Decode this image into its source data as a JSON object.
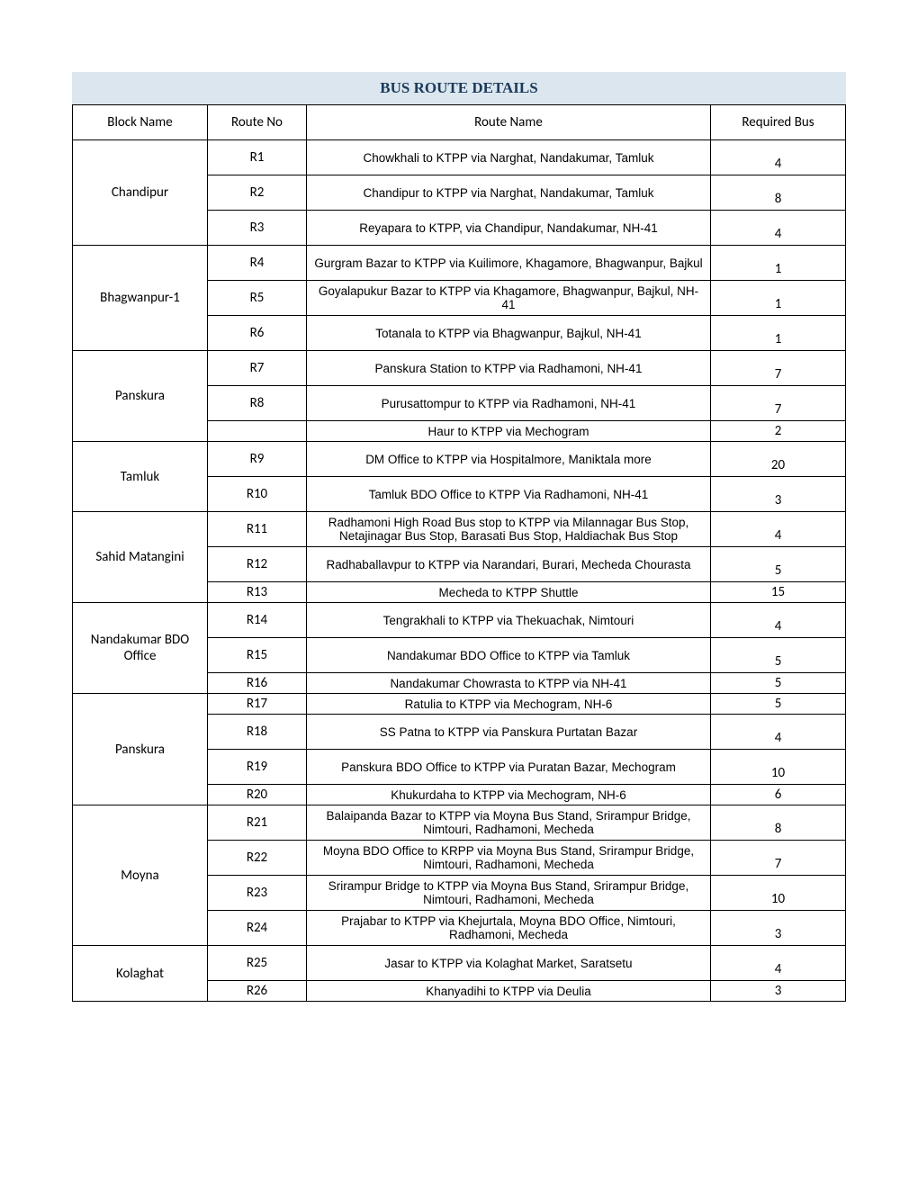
{
  "title": "BUS ROUTE DETAILS",
  "headers": {
    "block": "Block Name",
    "routeNo": "Route No",
    "routeName": "Route Name",
    "bus": "Required Bus"
  },
  "blocks": [
    {
      "name": "Chandipur",
      "rows": [
        {
          "no": "R1",
          "name": "Chowkhali to KTPP via Narghat, Nandakumar, Tamluk",
          "bus": "4"
        },
        {
          "no": "R2",
          "name": "Chandipur to KTPP via Narghat, Nandakumar, Tamluk",
          "bus": "8"
        },
        {
          "no": "R3",
          "name": "Reyapara to KTPP, via Chandipur, Nandakumar, NH-41",
          "bus": "4"
        }
      ]
    },
    {
      "name": "Bhagwanpur-1",
      "rows": [
        {
          "no": "R4",
          "name": "Gurgram Bazar to KTPP via Kuilimore, Khagamore, Bhagwanpur, Bajkul",
          "bus": "1"
        },
        {
          "no": "R5",
          "name": "Goyalapukur Bazar to KTPP via Khagamore, Bhagwanpur, Bajkul, NH-41",
          "bus": "1"
        },
        {
          "no": "R6",
          "name": "Totanala to KTPP via Bhagwanpur, Bajkul, NH-41",
          "bus": "1"
        }
      ]
    },
    {
      "name": "Panskura",
      "rows": [
        {
          "no": "R7",
          "name": "Panskura Station to KTPP via Radhamoni, NH-41",
          "bus": "7"
        },
        {
          "no": "R8",
          "name": "Purusattompur to KTPP via Radhamoni, NH-41",
          "bus": "7"
        },
        {
          "no": "",
          "name": "Haur to KTPP via Mechogram",
          "bus": "2",
          "tight": true
        }
      ]
    },
    {
      "name": "Tamluk",
      "rows": [
        {
          "no": "R9",
          "name": "DM Office to KTPP via Hospitalmore, Maniktala more",
          "bus": "20"
        },
        {
          "no": "R10",
          "name": "Tamluk BDO Office to KTPP Via Radhamoni, NH-41",
          "bus": "3"
        }
      ]
    },
    {
      "name": "Sahid Matangini",
      "rows": [
        {
          "no": "R11",
          "name": "Radhamoni High Road Bus stop to KTPP via Milannagar Bus Stop, Netajinagar Bus Stop, Barasati Bus Stop, Haldiachak Bus Stop",
          "bus": "4"
        },
        {
          "no": "R12",
          "name": "Radhaballavpur to KTPP via Narandari, Burari, Mecheda Chourasta",
          "bus": "5"
        },
        {
          "no": "R13",
          "name": "Mecheda to KTPP Shuttle",
          "bus": "15",
          "tight": true
        }
      ]
    },
    {
      "name": "Nandakumar BDO Office",
      "rows": [
        {
          "no": "R14",
          "name": "Tengrakhali to KTPP via Thekuachak, Nimtouri",
          "bus": "4"
        },
        {
          "no": "R15",
          "name": "Nandakumar BDO Office to KTPP via Tamluk",
          "bus": "5"
        },
        {
          "no": "R16",
          "name": "Nandakumar Chowrasta to KTPP via NH-41",
          "bus": "5",
          "tight": true
        }
      ]
    },
    {
      "name": "Panskura",
      "rows": [
        {
          "no": "R17",
          "name": "Ratulia to KTPP via Mechogram, NH-6",
          "bus": "5",
          "tight": true
        },
        {
          "no": "R18",
          "name": "SS Patna to KTPP via Panskura Purtatan Bazar",
          "bus": "4"
        },
        {
          "no": "R19",
          "name": "Panskura BDO Office to KTPP via Puratan Bazar, Mechogram",
          "bus": "10"
        },
        {
          "no": "R20",
          "name": "Khukurdaha to KTPP via Mechogram, NH-6",
          "bus": "6",
          "tight": true
        }
      ]
    },
    {
      "name": "Moyna",
      "rows": [
        {
          "no": "R21",
          "name": "Balaipanda Bazar to KTPP via Moyna Bus Stand, Srirampur Bridge, Nimtouri, Radhamoni, Mecheda",
          "bus": "8"
        },
        {
          "no": "R22",
          "name": "Moyna BDO Office to KRPP via Moyna Bus Stand, Srirampur Bridge, Nimtouri, Radhamoni, Mecheda",
          "bus": "7"
        },
        {
          "no": "R23",
          "name": "Srirampur Bridge to KTPP via Moyna Bus Stand, Srirampur Bridge, Nimtouri, Radhamoni, Mecheda",
          "bus": "10"
        },
        {
          "no": "R24",
          "name": "Prajabar to KTPP via Khejurtala, Moyna BDO Office, Nimtouri, Radhamoni, Mecheda",
          "bus": "3"
        }
      ]
    },
    {
      "name": "Kolaghat",
      "rows": [
        {
          "no": "R25",
          "name": "Jasar to KTPP via Kolaghat Market, Saratsetu",
          "bus": "4"
        },
        {
          "no": "R26",
          "name": "Khanyadihi to KTPP via Deulia",
          "bus": "3",
          "tight": true
        }
      ]
    }
  ]
}
